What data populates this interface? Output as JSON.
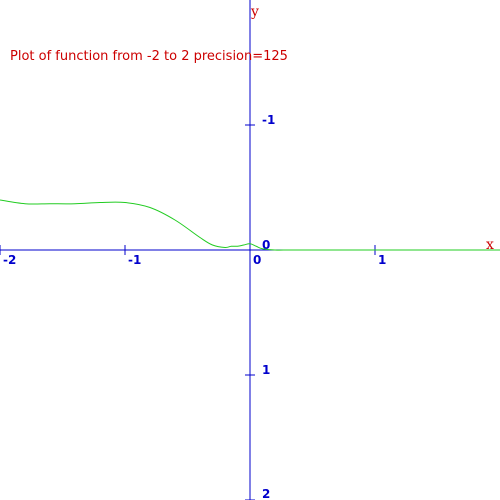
{
  "colors": {
    "axis": "#0000cc",
    "curve": "#22cc22",
    "title": "#cc0000",
    "axis_name": "#cc0000"
  },
  "chart_data": {
    "type": "line",
    "title": "Plot of function from -2 to 2 precision=125",
    "xlabel": "x",
    "ylabel": "y",
    "xlim": [
      -2,
      2
    ],
    "ylim": [
      -2,
      2
    ],
    "y_axis_inverted": true,
    "grid": false,
    "x_ticks": [
      -2,
      -1,
      0,
      1
    ],
    "x_tick_labels": [
      "-2",
      "-1",
      "0",
      "1"
    ],
    "y_ticks": [
      -1,
      0,
      1,
      2
    ],
    "y_tick_labels": [
      "-1",
      "0",
      "1",
      "2"
    ],
    "series": [
      {
        "x": [
          -2.0,
          -1.8,
          -1.6,
          -1.4,
          -1.2,
          -1.0,
          -0.8,
          -0.6,
          -0.4,
          -0.3,
          -0.2,
          -0.15,
          -0.1,
          -0.05,
          0.0,
          0.05,
          0.1,
          0.2,
          0.3,
          0.4,
          0.6,
          0.8,
          1.0,
          1.2,
          1.4,
          1.6,
          1.8,
          2.0
        ],
        "y": [
          -0.4,
          -0.37,
          -0.37,
          -0.37,
          -0.38,
          -0.38,
          -0.34,
          -0.24,
          -0.1,
          -0.04,
          -0.02,
          -0.03,
          -0.03,
          -0.04,
          -0.05,
          -0.03,
          -0.01,
          0.0,
          0.0,
          0.0,
          0.0,
          0.0,
          0.0,
          0.0,
          0.0,
          0.0,
          0.0,
          0.0
        ]
      }
    ]
  }
}
